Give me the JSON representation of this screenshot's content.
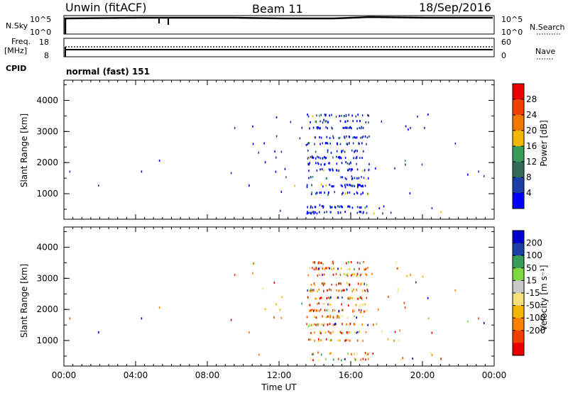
{
  "header": {
    "station": "Unwin (fitACF)",
    "beam": "Beam 11",
    "date": "18/Sep/2016"
  },
  "panels": {
    "nsky_label": "N.Sky",
    "nsky_ticks": [
      "10^5",
      "10^0"
    ],
    "nsearch_label": "N.Search",
    "freq_label_1": "Freq.",
    "freq_label_2": "[MHz]",
    "freq_ticks": [
      "18",
      "8"
    ],
    "nave_label": "Nave",
    "nave_ticks": [
      "60",
      "0"
    ],
    "cpid_label": "CPID",
    "cpid_value": "normal (fast) 151"
  },
  "colors": {
    "power_scale": [
      "#0000ff",
      "#1b3fa6",
      "#336b5a",
      "#3a9a5a",
      "#f2b705",
      "#f07800",
      "#f04000",
      "#e80000"
    ],
    "velocity_scale": [
      "#e80000",
      "#f04000",
      "#ff7f00",
      "#f2b705",
      "#f5e07a",
      "#c8c8c8",
      "#7fd640",
      "#3a9a5a",
      "#1b3fa6",
      "#0000cc"
    ]
  },
  "chart_data": [
    {
      "type": "heatmap",
      "ylabel": "Slant Range [km]",
      "xlabel": "Time UT",
      "x_ticks": [
        "00:00",
        "04:00",
        "08:00",
        "12:00",
        "16:00",
        "20:00",
        "00:00"
      ],
      "x_range_hours": [
        0,
        24
      ],
      "y_ticks": [
        "1000",
        "2000",
        "3000",
        "4000"
      ],
      "ylim": [
        180,
        4650
      ],
      "colorbar": {
        "label": "Power [dB]",
        "ticks": [
          "4",
          "8",
          "12",
          "16",
          "20",
          "24",
          "28"
        ],
        "range": [
          0,
          32
        ]
      }
    },
    {
      "type": "heatmap",
      "ylabel": "Slant Range [km]",
      "xlabel": "Time UT",
      "x_ticks": [
        "00:00",
        "04:00",
        "08:00",
        "12:00",
        "16:00",
        "20:00",
        "00:00"
      ],
      "x_range_hours": [
        0,
        24
      ],
      "y_ticks": [
        "1000",
        "2000",
        "3000",
        "4000"
      ],
      "ylim": [
        180,
        4650
      ],
      "colorbar": {
        "label": "Velocity [m s⁻¹]",
        "ticks": [
          "200",
          "100",
          "50",
          "15",
          "-15",
          "-50",
          "-100",
          "-200"
        ],
        "range": [
          -250,
          250
        ]
      }
    }
  ],
  "scatter_summary": {
    "dense_time_hours": [
      13.5,
      17.0
    ],
    "range_bands_km": [
      380,
      560,
      1000,
      1250,
      1500,
      1750,
      1950,
      2150,
      2350,
      2600,
      2800,
      3100,
      3300,
      3500
    ],
    "sparse_points": [
      [
        0.3,
        1700
      ],
      [
        1.9,
        1250
      ],
      [
        4.3,
        1700
      ],
      [
        5.3,
        2050
      ],
      [
        9.3,
        1650
      ],
      [
        9.5,
        3100
      ],
      [
        10.3,
        1250
      ],
      [
        10.5,
        3150
      ],
      [
        11.2,
        2000
      ],
      [
        11.8,
        2150
      ],
      [
        19.0,
        2050
      ],
      [
        19.3,
        3100
      ],
      [
        21.8,
        2600
      ],
      [
        23.1,
        1700
      ],
      [
        23.4,
        1550
      ],
      [
        22.5,
        1600
      ],
      [
        20.5,
        520
      ],
      [
        21.0,
        400
      ]
    ]
  }
}
